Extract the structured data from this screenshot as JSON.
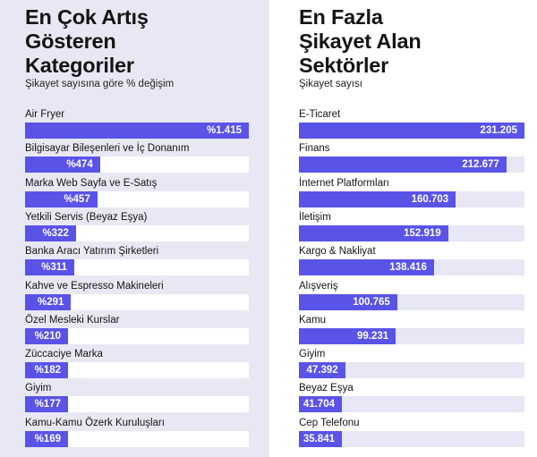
{
  "colors": {
    "bar": "#5a53e8",
    "left_background": "#e8e8f5",
    "right_track": "#e7e7f5",
    "value_text": "#ffffff"
  },
  "chart_data": [
    {
      "type": "bar",
      "orientation": "horizontal",
      "title": "En Çok Artış\nGösteren\nKategoriler",
      "subtitle": "Şikayet sayısına göre % değişim",
      "categories": [
        "Air Fryer",
        "Bilgisayar Bileşenleri ve İç Donanım",
        "Marka Web Sayfa ve E-Satış",
        "Yetkili Servis (Beyaz Eşya)",
        "Banka Aracı Yatırım Şirketleri",
        "Kahve ve Espresso Makineleri",
        "Özel Mesleki Kurslar",
        "Züccaciye Marka",
        "Giyim",
        "Kamu-Kamu Özerk Kuruluşları"
      ],
      "values": [
        1415,
        474,
        457,
        322,
        311,
        291,
        210,
        182,
        177,
        169
      ],
      "value_labels": [
        "%1.415",
        "%474",
        "%457",
        "%322",
        "%311",
        "%291",
        "%210",
        "%182",
        "%177",
        "%169"
      ],
      "xlim": [
        0,
        1415
      ],
      "grid": false
    },
    {
      "type": "bar",
      "orientation": "horizontal",
      "title": "En Fazla\nŞikayet Alan\nSektörler",
      "subtitle": "Şikayet sayısı",
      "categories": [
        "E-Ticaret",
        "Finans",
        "İnternet Platformları",
        "İletişim",
        "Kargo & Nakliyat",
        "Alışveriş",
        "Kamu",
        "Giyim",
        "Beyaz Eşya",
        "Cep Telefonu"
      ],
      "values": [
        231205,
        212677,
        160703,
        152919,
        138416,
        100765,
        99231,
        47392,
        41704,
        35841
      ],
      "value_labels": [
        "231.205",
        "212.677",
        "160.703",
        "152.919",
        "138.416",
        "100.765",
        "99.231",
        "47.392",
        "41.704",
        "35.841"
      ],
      "xlim": [
        0,
        231205
      ],
      "grid": false
    }
  ]
}
